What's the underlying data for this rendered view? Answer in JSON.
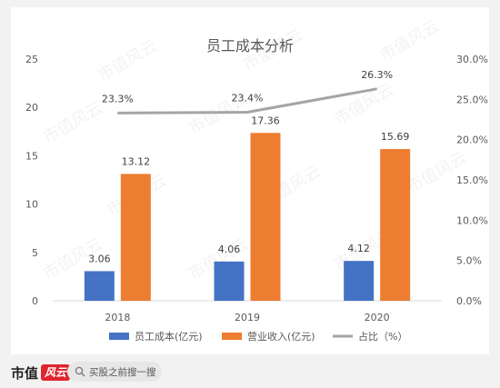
{
  "chart_data": {
    "type": "bar",
    "title": "员工成本分析",
    "categories": [
      "2018",
      "2019",
      "2020"
    ],
    "series": [
      {
        "name": "员工成本(亿元)",
        "values": [
          3.06,
          4.06,
          4.12
        ],
        "value_labels": [
          "3.06",
          "4.06",
          "4.12"
        ],
        "color": "#4472c4",
        "axis": "left"
      },
      {
        "name": "营业收入(亿元)",
        "values": [
          13.12,
          17.36,
          15.69
        ],
        "value_labels": [
          "13.12",
          "17.36",
          "15.69"
        ],
        "color": "#ed7d31",
        "axis": "left"
      },
      {
        "name": "占比（%）",
        "type": "line",
        "values": [
          23.3,
          23.4,
          26.3
        ],
        "value_labels": [
          "23.3%",
          "23.4%",
          "26.3%"
        ],
        "color": "#a5a5a5",
        "axis": "right"
      }
    ],
    "y_left": {
      "min": 0,
      "max": 25,
      "ticks": [
        "0",
        "5",
        "10",
        "15",
        "20",
        "25"
      ]
    },
    "y_right": {
      "min": 0,
      "max": 30,
      "ticks": [
        "0.0%",
        "5.0%",
        "10.0%",
        "15.0%",
        "20.0%",
        "25.0%",
        "30.0%"
      ]
    },
    "grid": false,
    "legend_position": "bottom"
  },
  "watermark_text": "市值风云",
  "footer": {
    "brand_text": "市值",
    "brand_mark": "风云",
    "search_placeholder": "买股之前搜一搜",
    "search_icon": "search-icon"
  }
}
